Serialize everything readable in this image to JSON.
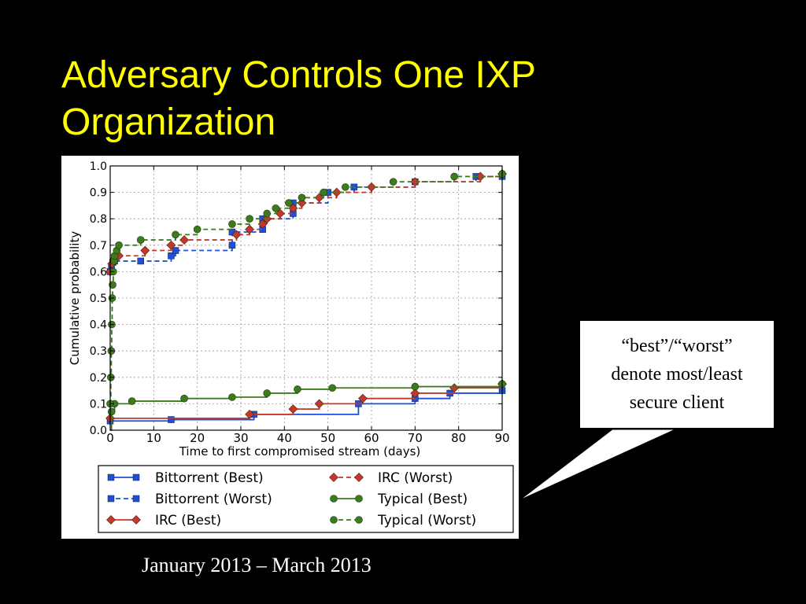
{
  "slide": {
    "title_lines": [
      "Adversary Controls One IXP",
      "Organization"
    ],
    "caption": "January 2013 – March 2013",
    "callout_lines": [
      "“best”/“worst”",
      "denote most/least",
      "secure client"
    ]
  },
  "chart_data": {
    "type": "line",
    "title": "",
    "xlabel": "Time to first compromised stream (days)",
    "ylabel": "Cumulative probability",
    "xlim": [
      0,
      90
    ],
    "ylim": [
      0.0,
      1.0
    ],
    "xticks": [
      "0",
      "10",
      "20",
      "30",
      "40",
      "50",
      "60",
      "70",
      "80",
      "90"
    ],
    "yticks": [
      "0.0",
      "0.1",
      "0.2",
      "0.3",
      "0.4",
      "0.5",
      "0.6",
      "0.7",
      "0.8",
      "0.9",
      "1.0"
    ],
    "grid": true,
    "legend_position": "bottom",
    "series": [
      {
        "name": "Bittorrent (Best)",
        "color": "#1f4fd8",
        "marker": "square",
        "dash": false,
        "points": [
          [
            0,
            0.035
          ],
          [
            14,
            0.04
          ],
          [
            33,
            0.06
          ],
          [
            57,
            0.1
          ],
          [
            70,
            0.12
          ],
          [
            78,
            0.14
          ],
          [
            90,
            0.15
          ]
        ]
      },
      {
        "name": "Bittorrent (Worst)",
        "color": "#1f4fd8",
        "marker": "square",
        "dash": true,
        "points": [
          [
            0,
            0.6
          ],
          [
            0.3,
            0.62
          ],
          [
            0.6,
            0.635
          ],
          [
            1,
            0.64
          ],
          [
            7,
            0.64
          ],
          [
            14,
            0.66
          ],
          [
            15,
            0.68
          ],
          [
            28,
            0.7
          ],
          [
            28,
            0.75
          ],
          [
            35,
            0.76
          ],
          [
            35,
            0.8
          ],
          [
            42,
            0.82
          ],
          [
            42,
            0.86
          ],
          [
            50,
            0.9
          ],
          [
            56,
            0.92
          ],
          [
            70,
            0.94
          ],
          [
            84,
            0.96
          ],
          [
            90,
            0.96
          ]
        ]
      },
      {
        "name": "IRC (Best)",
        "color": "#c0392b",
        "marker": "diamond",
        "dash": false,
        "points": [
          [
            0,
            0.045
          ],
          [
            32,
            0.06
          ],
          [
            42,
            0.08
          ],
          [
            48,
            0.1
          ],
          [
            58,
            0.12
          ],
          [
            70,
            0.14
          ],
          [
            79,
            0.16
          ],
          [
            90,
            0.175
          ]
        ]
      },
      {
        "name": "IRC (Worst)",
        "color": "#c0392b",
        "marker": "diamond",
        "dash": true,
        "points": [
          [
            0,
            0.6
          ],
          [
            0.4,
            0.63
          ],
          [
            1,
            0.65
          ],
          [
            2,
            0.66
          ],
          [
            8,
            0.68
          ],
          [
            14,
            0.7
          ],
          [
            17,
            0.72
          ],
          [
            29,
            0.74
          ],
          [
            32,
            0.76
          ],
          [
            35,
            0.78
          ],
          [
            36,
            0.8
          ],
          [
            39,
            0.82
          ],
          [
            42,
            0.84
          ],
          [
            44,
            0.86
          ],
          [
            48,
            0.88
          ],
          [
            52,
            0.9
          ],
          [
            60,
            0.92
          ],
          [
            70,
            0.94
          ],
          [
            85,
            0.96
          ],
          [
            90,
            0.97
          ]
        ]
      },
      {
        "name": "Typical (Best)",
        "color": "#3d7a1e",
        "marker": "circle",
        "dash": false,
        "points": [
          [
            0,
            0.0
          ],
          [
            0.3,
            0.07
          ],
          [
            1,
            0.1
          ],
          [
            5,
            0.11
          ],
          [
            17,
            0.12
          ],
          [
            28,
            0.125
          ],
          [
            36,
            0.14
          ],
          [
            43,
            0.155
          ],
          [
            51,
            0.16
          ],
          [
            70,
            0.165
          ],
          [
            90,
            0.175
          ]
        ]
      },
      {
        "name": "Typical (Worst)",
        "color": "#3d7a1e",
        "marker": "circle",
        "dash": true,
        "points": [
          [
            0,
            0.1
          ],
          [
            0.15,
            0.2
          ],
          [
            0.25,
            0.3
          ],
          [
            0.35,
            0.4
          ],
          [
            0.45,
            0.5
          ],
          [
            0.55,
            0.55
          ],
          [
            0.7,
            0.6
          ],
          [
            0.9,
            0.64
          ],
          [
            1,
            0.66
          ],
          [
            1.5,
            0.68
          ],
          [
            2,
            0.7
          ],
          [
            7,
            0.72
          ],
          [
            15,
            0.74
          ],
          [
            20,
            0.76
          ],
          [
            28,
            0.78
          ],
          [
            32,
            0.8
          ],
          [
            36,
            0.82
          ],
          [
            38,
            0.84
          ],
          [
            41,
            0.86
          ],
          [
            44,
            0.88
          ],
          [
            49,
            0.9
          ],
          [
            54,
            0.92
          ],
          [
            65,
            0.94
          ],
          [
            79,
            0.96
          ],
          [
            90,
            0.97
          ]
        ]
      }
    ]
  }
}
